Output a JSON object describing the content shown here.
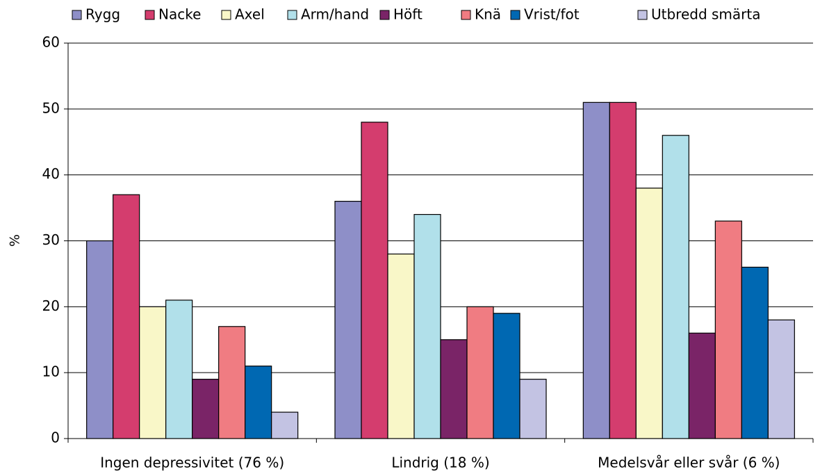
{
  "chart_data": {
    "type": "bar",
    "y_label": "%",
    "categories": [
      "Ingen depressivitet (76 %)",
      "Lindrig (18 %)",
      "Medelsvår eller svår (6 %)"
    ],
    "series": [
      {
        "name": "Rygg",
        "color": "#8e8fc8",
        "values": [
          30,
          36,
          51
        ]
      },
      {
        "name": "Nacke",
        "color": "#d43d6e",
        "values": [
          37,
          48,
          51
        ]
      },
      {
        "name": "Axel",
        "color": "#f9f7c8",
        "values": [
          20,
          28,
          38
        ]
      },
      {
        "name": "Arm/hand",
        "color": "#b1e0ea",
        "values": [
          21,
          34,
          46
        ]
      },
      {
        "name": "Höft",
        "color": "#7a2467",
        "values": [
          9,
          15,
          16
        ]
      },
      {
        "name": "Knä",
        "color": "#f07c82",
        "values": [
          17,
          20,
          33
        ]
      },
      {
        "name": "Vrist/fot",
        "color": "#0068b2",
        "values": [
          11,
          19,
          26
        ]
      },
      {
        "name": "Utbredd smärta",
        "color": "#c3c3e3",
        "values": [
          4,
          9,
          18
        ]
      }
    ],
    "ylim": [
      0,
      60
    ],
    "yticks": [
      0,
      10,
      20,
      30,
      40,
      50,
      60
    ],
    "grid": true,
    "legend": "top"
  }
}
